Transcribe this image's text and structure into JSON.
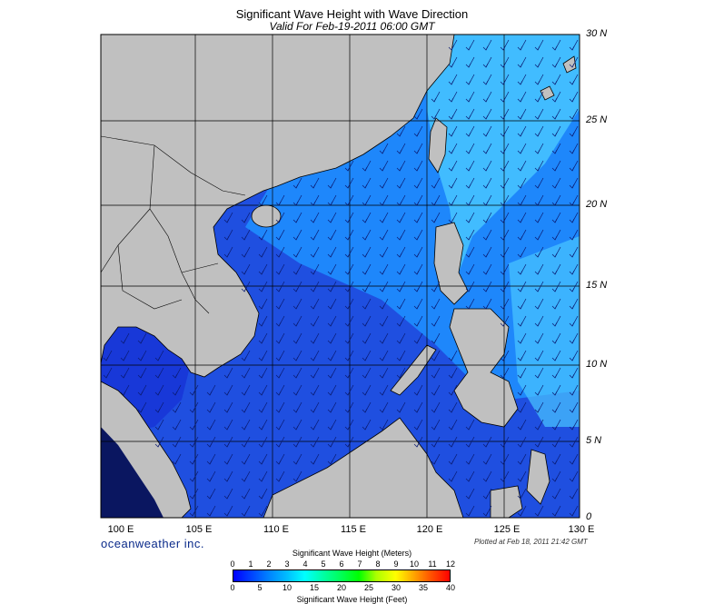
{
  "title": "Significant Wave Height with Wave Direction",
  "subtitle": "Valid For Feb-19-2011 06:00 GMT",
  "lat_labels": [
    "30 N",
    "25 N",
    "20 N",
    "15 N",
    "10 N",
    "5 N",
    "0"
  ],
  "lon_labels": [
    "100 E",
    "105 E",
    "110 E",
    "115 E",
    "120 E",
    "125 E",
    "130 E"
  ],
  "brand": "oceanweather inc.",
  "plotted": "Plotted at Feb 18, 2011 21:42 GMT",
  "scale": {
    "meters_title": "Significant Wave Height (Meters)",
    "feet_title": "Significant Wave Height (Feet)",
    "meters_ticks": [
      "0",
      "1",
      "2",
      "3",
      "4",
      "5",
      "6",
      "7",
      "8",
      "9",
      "10",
      "11",
      "12"
    ],
    "feet_ticks": [
      "0",
      "5",
      "10",
      "15",
      "20",
      "25",
      "30",
      "35",
      "40"
    ]
  },
  "colors": {
    "land": "#c0c0c0",
    "low_wave": "#1f4fe0",
    "mid_wave": "#1e90ff",
    "high_wave": "#4ac8ff",
    "arrow": "#0a1a70"
  }
}
